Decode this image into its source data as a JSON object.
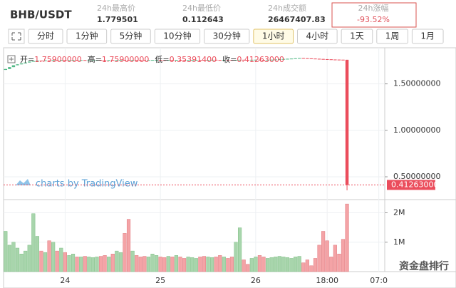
{
  "header": {
    "pair": "BHB/USDT",
    "stats": [
      {
        "label": "24h最高价",
        "value": "1.779501"
      },
      {
        "label": "24h最低价",
        "value": "0.112643"
      },
      {
        "label": "24h成交额",
        "value": "26467407.83"
      },
      {
        "label": "24h涨幅",
        "value": "-93.52%",
        "highlight": true
      }
    ]
  },
  "toolbar": [
    {
      "label": "分时"
    },
    {
      "label": "1分钟"
    },
    {
      "label": "5分钟"
    },
    {
      "label": "10分钟"
    },
    {
      "label": "30分钟"
    },
    {
      "label": "1小时",
      "active": true
    },
    {
      "label": "4小时"
    },
    {
      "label": "1天"
    },
    {
      "label": "1周"
    },
    {
      "label": "1月"
    }
  ],
  "watermark": "charts by TradingView",
  "overlay_text": "资金盘排行",
  "chart_data": {
    "type": "candlestick",
    "categories": [
      null,
      null,
      null,
      null,
      null,
      null,
      null,
      null,
      null,
      null,
      null,
      null,
      null,
      null,
      null,
      "24",
      null,
      null,
      null,
      null,
      null,
      null,
      null,
      null,
      null,
      null,
      null,
      null,
      null,
      null,
      null,
      null,
      null,
      null,
      null,
      null,
      null,
      null,
      null,
      "25",
      null,
      null,
      null,
      null,
      null,
      null,
      null,
      null,
      null,
      null,
      null,
      null,
      null,
      null,
      null,
      null,
      null,
      null,
      null,
      null,
      null,
      null,
      null,
      "26",
      null,
      null,
      null,
      null,
      null,
      null,
      null,
      null,
      null,
      null,
      null,
      null,
      null,
      null,
      null,
      null,
      null,
      "18:00",
      null,
      null,
      null,
      null,
      null,
      null,
      null,
      null,
      null,
      null,
      null,
      null,
      "07:0",
      null
    ],
    "open": [
      1.65,
      1.66,
      1.68,
      1.7,
      1.71,
      1.72,
      1.73,
      1.74,
      1.745,
      1.75,
      1.748,
      1.752,
      1.75,
      1.755,
      1.753,
      1.756,
      1.754,
      1.755,
      1.757,
      1.755,
      1.756,
      1.754,
      1.755,
      1.756,
      1.757,
      1.755,
      1.754,
      1.756,
      1.755,
      1.757,
      1.758,
      1.756,
      1.755,
      1.757,
      1.756,
      1.755,
      1.754,
      1.756,
      1.757,
      1.758,
      1.756,
      1.755,
      1.757,
      1.756,
      1.758,
      1.757,
      1.755,
      1.756,
      1.757,
      1.758,
      1.757,
      1.756,
      1.758,
      1.759,
      1.757,
      1.756,
      1.758,
      1.757,
      1.756,
      1.758,
      1.759,
      1.758,
      1.757,
      1.759,
      1.76,
      1.758,
      1.757,
      1.759,
      1.76,
      1.762,
      1.765,
      1.768,
      1.77,
      1.772,
      1.775,
      1.778,
      1.776,
      1.774,
      1.772,
      1.77,
      1.768,
      1.766,
      1.764,
      1.762,
      1.761,
      1.76,
      1.759,
      null,
      null,
      null,
      null,
      null,
      null,
      null,
      null,
      null
    ],
    "high": [
      1.66,
      1.68,
      1.7,
      1.71,
      1.72,
      1.73,
      1.74,
      1.745,
      1.75,
      1.75,
      1.752,
      1.752,
      1.755,
      1.755,
      1.756,
      1.756,
      1.755,
      1.757,
      1.757,
      1.756,
      1.756,
      1.755,
      1.756,
      1.757,
      1.757,
      1.755,
      1.756,
      1.756,
      1.757,
      1.758,
      1.758,
      1.756,
      1.757,
      1.757,
      1.756,
      1.755,
      1.756,
      1.757,
      1.758,
      1.758,
      1.756,
      1.757,
      1.757,
      1.758,
      1.758,
      1.757,
      1.756,
      1.757,
      1.758,
      1.758,
      1.757,
      1.758,
      1.759,
      1.759,
      1.757,
      1.758,
      1.758,
      1.757,
      1.758,
      1.759,
      1.759,
      1.758,
      1.759,
      1.76,
      1.76,
      1.758,
      1.759,
      1.76,
      1.762,
      1.765,
      1.768,
      1.77,
      1.772,
      1.775,
      1.778,
      1.778,
      1.776,
      1.774,
      1.772,
      1.77,
      1.768,
      1.766,
      1.764,
      1.762,
      1.761,
      1.76,
      1.759,
      null,
      null,
      null,
      null,
      null,
      null,
      null,
      null,
      null
    ],
    "low": [
      1.65,
      1.66,
      1.68,
      1.7,
      1.71,
      1.72,
      1.73,
      1.74,
      1.745,
      1.748,
      1.748,
      1.75,
      1.75,
      1.753,
      1.753,
      1.754,
      1.754,
      1.755,
      1.755,
      1.755,
      1.754,
      1.754,
      1.755,
      1.756,
      1.755,
      1.754,
      1.754,
      1.755,
      1.755,
      1.757,
      1.756,
      1.755,
      1.755,
      1.756,
      1.755,
      1.754,
      1.754,
      1.756,
      1.757,
      1.756,
      1.755,
      1.755,
      1.756,
      1.756,
      1.757,
      1.755,
      1.755,
      1.756,
      1.757,
      1.757,
      1.756,
      1.756,
      1.758,
      1.757,
      1.756,
      1.756,
      1.757,
      1.756,
      1.756,
      1.758,
      1.758,
      1.757,
      1.757,
      1.759,
      1.758,
      1.757,
      1.757,
      1.759,
      1.76,
      1.762,
      1.765,
      1.768,
      1.77,
      1.772,
      1.775,
      1.776,
      1.774,
      1.772,
      1.77,
      1.768,
      1.766,
      1.764,
      1.762,
      1.761,
      1.76,
      1.759,
      0.353914,
      null,
      null,
      null,
      null,
      null,
      null,
      null,
      null,
      null
    ],
    "close": [
      1.66,
      1.68,
      1.7,
      1.71,
      1.72,
      1.73,
      1.74,
      1.745,
      1.75,
      1.748,
      1.752,
      1.75,
      1.755,
      1.753,
      1.756,
      1.754,
      1.755,
      1.757,
      1.755,
      1.756,
      1.754,
      1.755,
      1.756,
      1.757,
      1.755,
      1.754,
      1.756,
      1.755,
      1.757,
      1.758,
      1.756,
      1.755,
      1.757,
      1.756,
      1.755,
      1.754,
      1.756,
      1.757,
      1.758,
      1.756,
      1.755,
      1.757,
      1.756,
      1.758,
      1.757,
      1.755,
      1.756,
      1.757,
      1.758,
      1.757,
      1.756,
      1.758,
      1.759,
      1.757,
      1.756,
      1.758,
      1.757,
      1.756,
      1.758,
      1.759,
      1.758,
      1.757,
      1.759,
      1.76,
      1.758,
      1.757,
      1.759,
      1.76,
      1.762,
      1.765,
      1.768,
      1.77,
      1.772,
      1.775,
      1.778,
      1.776,
      1.774,
      1.772,
      1.77,
      1.768,
      1.766,
      1.764,
      1.762,
      1.761,
      1.76,
      1.759,
      0.41263,
      null,
      null,
      null,
      null,
      null,
      null,
      null,
      null,
      null
    ],
    "up_color": "#53b987",
    "down_color": "#eb4d5c",
    "ylim": [
      0.27,
      1.85
    ],
    "yticks": [
      {
        "value": 0.5,
        "label": "0.50000000"
      },
      {
        "value": 1.0,
        "label": "1.00000000"
      },
      {
        "value": 1.5,
        "label": "1.50000000"
      }
    ],
    "grid": true,
    "legend": [
      {
        "label": "开=",
        "value": "1.75900000"
      },
      {
        "label": "高=",
        "value": "1.75900000"
      },
      {
        "label": "低=",
        "value": "0.35391400"
      },
      {
        "label": "收=",
        "value": "0.41263000"
      }
    ],
    "last_price_label": "0.41263000",
    "volume": {
      "values": [
        1370000,
        900000,
        1000000,
        800000,
        600000,
        700000,
        900000,
        1970000,
        1200000,
        700000,
        650000,
        1050000,
        1000000,
        700000,
        800000,
        650000,
        550000,
        600000,
        500000,
        500000,
        520000,
        500000,
        480000,
        500000,
        520000,
        550000,
        500000,
        600000,
        700000,
        650000,
        1300000,
        1780000,
        700000,
        550000,
        500000,
        520000,
        500000,
        600000,
        550000,
        500000,
        480000,
        520000,
        500000,
        550000,
        500000,
        450000,
        500000,
        480000,
        450000,
        500000,
        520000,
        500000,
        480000,
        500000,
        550000,
        500000,
        450000,
        500000,
        1000000,
        1490000,
        400000,
        250000,
        450000,
        500000,
        550000,
        500000,
        450000,
        480000,
        500000,
        520000,
        500000,
        480000,
        450000,
        500000,
        520000,
        300000,
        400000,
        200000,
        450000,
        900000,
        1370000,
        1050000,
        500000,
        900000,
        600000,
        1100000,
        2300000,
        null,
        null,
        null,
        null,
        null,
        null,
        null,
        null,
        null
      ],
      "up_color": "#a8d5ac",
      "down_color": "#f4a3a6",
      "ylim": [
        0,
        2400000
      ],
      "yticks": [
        {
          "value": 1000000,
          "label": "1M"
        },
        {
          "value": 2000000,
          "label": "2M"
        }
      ]
    }
  }
}
